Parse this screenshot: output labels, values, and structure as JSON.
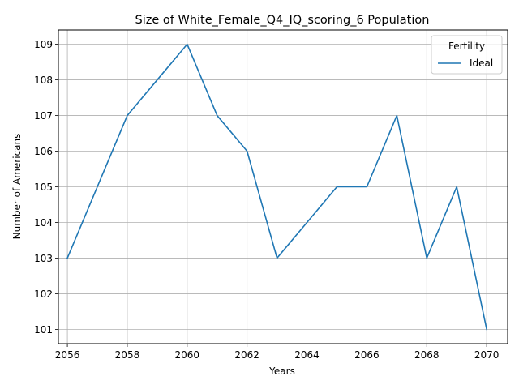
{
  "chart_data": {
    "type": "line",
    "title": "Size of White_Female_Q4_IQ_scoring_6 Population",
    "xlabel": "Years",
    "ylabel": "Number of Americans",
    "xlim": [
      2055.7,
      2070.7
    ],
    "ylim": [
      100.6,
      109.4
    ],
    "xticks": [
      2056,
      2058,
      2060,
      2062,
      2064,
      2066,
      2068,
      2070
    ],
    "yticks": [
      101,
      102,
      103,
      104,
      105,
      106,
      107,
      108,
      109
    ],
    "grid": true,
    "legend": {
      "title": "Fertility",
      "placement": "top-right"
    },
    "series": [
      {
        "name": "Ideal",
        "color": "#1f77b4",
        "x": [
          2056,
          2057,
          2058,
          2059,
          2060,
          2061,
          2062,
          2063,
          2064,
          2065,
          2066,
          2067,
          2068,
          2069,
          2070
        ],
        "y": [
          103,
          105,
          107,
          108,
          109,
          107,
          106,
          103,
          104,
          105,
          105,
          107,
          103,
          105,
          101
        ]
      }
    ]
  }
}
